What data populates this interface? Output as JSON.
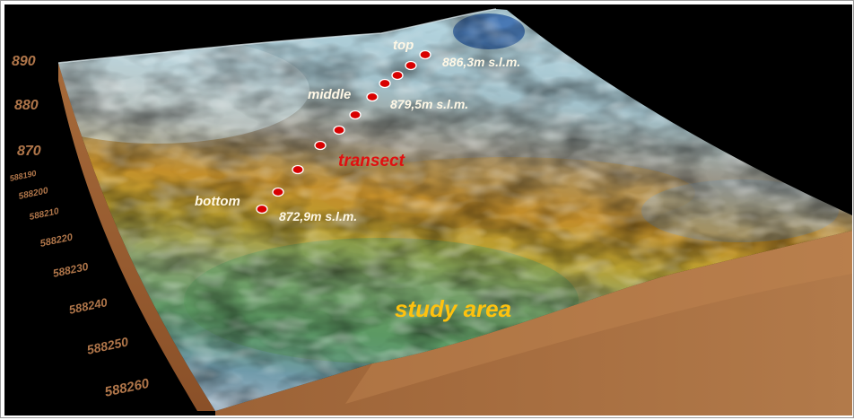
{
  "elevation_axis": {
    "ticks": [
      "890",
      "880",
      "870"
    ]
  },
  "northing_axis": {
    "ticks": [
      "588190",
      "588200",
      "588210",
      "588220",
      "588230",
      "588240",
      "588250",
      "588260"
    ]
  },
  "transect": {
    "label": "transect",
    "label_color": "#e01010",
    "points": {
      "top": {
        "label": "top",
        "elevation": "886,3m s.l.m."
      },
      "middle": {
        "label": "middle",
        "elevation": "879,5m s.l.m."
      },
      "bottom": {
        "label": "bottom",
        "elevation": "872,9m s.l.m."
      }
    }
  },
  "area_label": "study area",
  "area_label_color": "#ffc20e",
  "colors": {
    "background": "#000000",
    "side_wall": "#a66a3a",
    "axis_text": "#b0764a",
    "marker": "#d80000"
  }
}
